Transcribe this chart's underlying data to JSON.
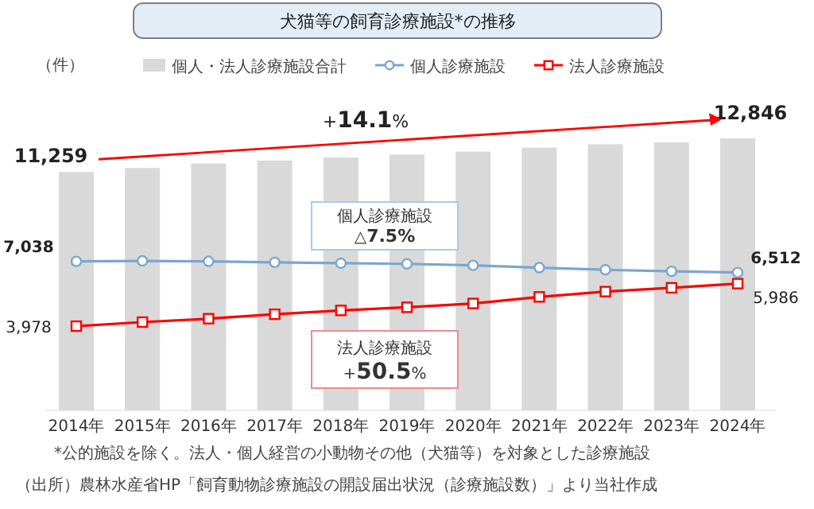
{
  "chart_data": {
    "type": "bar",
    "title": "犬猫等の飼育診療施設*の推移",
    "ylabel": "（件）",
    "categories": [
      "2014年",
      "2015年",
      "2016年",
      "2017年",
      "2018年",
      "2019年",
      "2020年",
      "2021年",
      "2022年",
      "2023年",
      "2024年"
    ],
    "series": [
      {
        "name": "個人・法人診療施設合計",
        "color": "#d9d9d9",
        "values": [
          11259,
          11450,
          11660,
          11800,
          11940,
          12080,
          12220,
          12410,
          12570,
          12660,
          12846
        ],
        "value_labels": [
          "11,259",
          null,
          null,
          null,
          null,
          null,
          null,
          null,
          null,
          null,
          "12,846"
        ]
      },
      {
        "name": "個人診療施設",
        "type": "line",
        "color": "#7aa6d2",
        "marker": "circle",
        "values": [
          7038,
          7060,
          7040,
          6990,
          6950,
          6920,
          6850,
          6740,
          6640,
          6570,
          6512
        ],
        "value_labels": [
          "7,038",
          null,
          null,
          null,
          null,
          null,
          null,
          null,
          null,
          null,
          "6,512"
        ]
      },
      {
        "name": "法人診療施設",
        "type": "line",
        "color": "#ff0000",
        "marker": "square",
        "values": [
          3978,
          4170,
          4330,
          4540,
          4720,
          4870,
          5050,
          5360,
          5610,
          5790,
          5986
        ],
        "value_labels": [
          "3,978",
          null,
          null,
          null,
          null,
          null,
          null,
          null,
          null,
          null,
          "5,986"
        ]
      }
    ],
    "tick_labels": "x",
    "legend": "top",
    "annotations": [
      "+**14.1**%",
      "個人診療施設\n△**7.5%**",
      "法人診療施設\n+**50.5**%",
      "*公的施設を除く。法人・個人経営の小動物その他（犬猫等）を対象とした診療施設",
      "（出所）農林水産省HP「飼育動物診療施設の開設届出状況（診療施設数）」より当社作成"
    ]
  }
}
